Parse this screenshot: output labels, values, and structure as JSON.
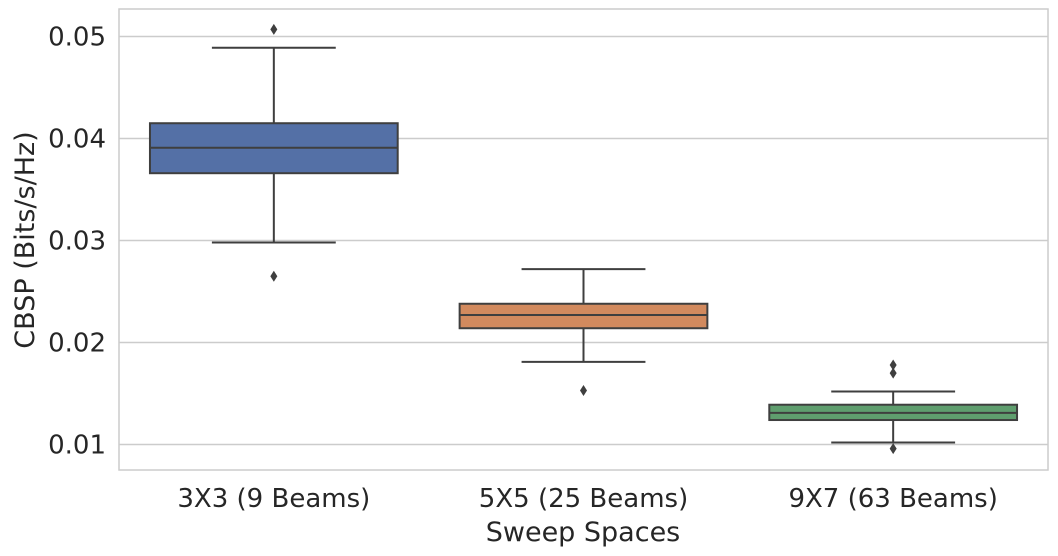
{
  "chart_data": {
    "type": "box",
    "xlabel": "Sweep Spaces",
    "ylabel": "CBSP (Bits/s/Hz)",
    "ylim": [
      0.0075,
      0.0527
    ],
    "yticks": [
      0.01,
      0.02,
      0.03,
      0.04,
      0.05
    ],
    "ytick_labels": [
      "0.01",
      "0.02",
      "0.03",
      "0.04",
      "0.05"
    ],
    "grid": "horizontal",
    "categories": [
      "3X3 (9 Beams)",
      "5X5 (25 Beams)",
      "9X7 (63 Beams)"
    ],
    "boxes": [
      {
        "category": "3X3 (9 Beams)",
        "color": "#5470a6",
        "whisker_low": 0.0298,
        "q1": 0.0366,
        "median": 0.0391,
        "q3": 0.0415,
        "whisker_high": 0.0489,
        "outliers": [
          0.0507,
          0.0265
        ]
      },
      {
        "category": "5X5 (25 Beams)",
        "color": "#d28a5e",
        "whisker_low": 0.0181,
        "q1": 0.0214,
        "median": 0.0227,
        "q3": 0.0238,
        "whisker_high": 0.0272,
        "outliers": [
          0.0153
        ]
      },
      {
        "category": "9X7 (63 Beams)",
        "color": "#5f9e6e",
        "whisker_low": 0.0102,
        "q1": 0.0124,
        "median": 0.0131,
        "q3": 0.0139,
        "whisker_high": 0.0152,
        "outliers": [
          0.0178,
          0.017,
          0.0096
        ]
      }
    ]
  }
}
